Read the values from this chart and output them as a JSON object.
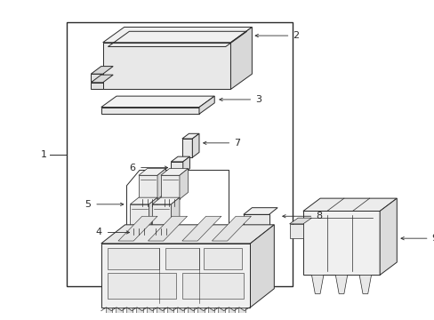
{
  "bg_color": "#ffffff",
  "line_color": "#2a2a2a",
  "text_color": "#2a2a2a",
  "fig_width": 4.89,
  "fig_height": 3.6,
  "dpi": 100
}
